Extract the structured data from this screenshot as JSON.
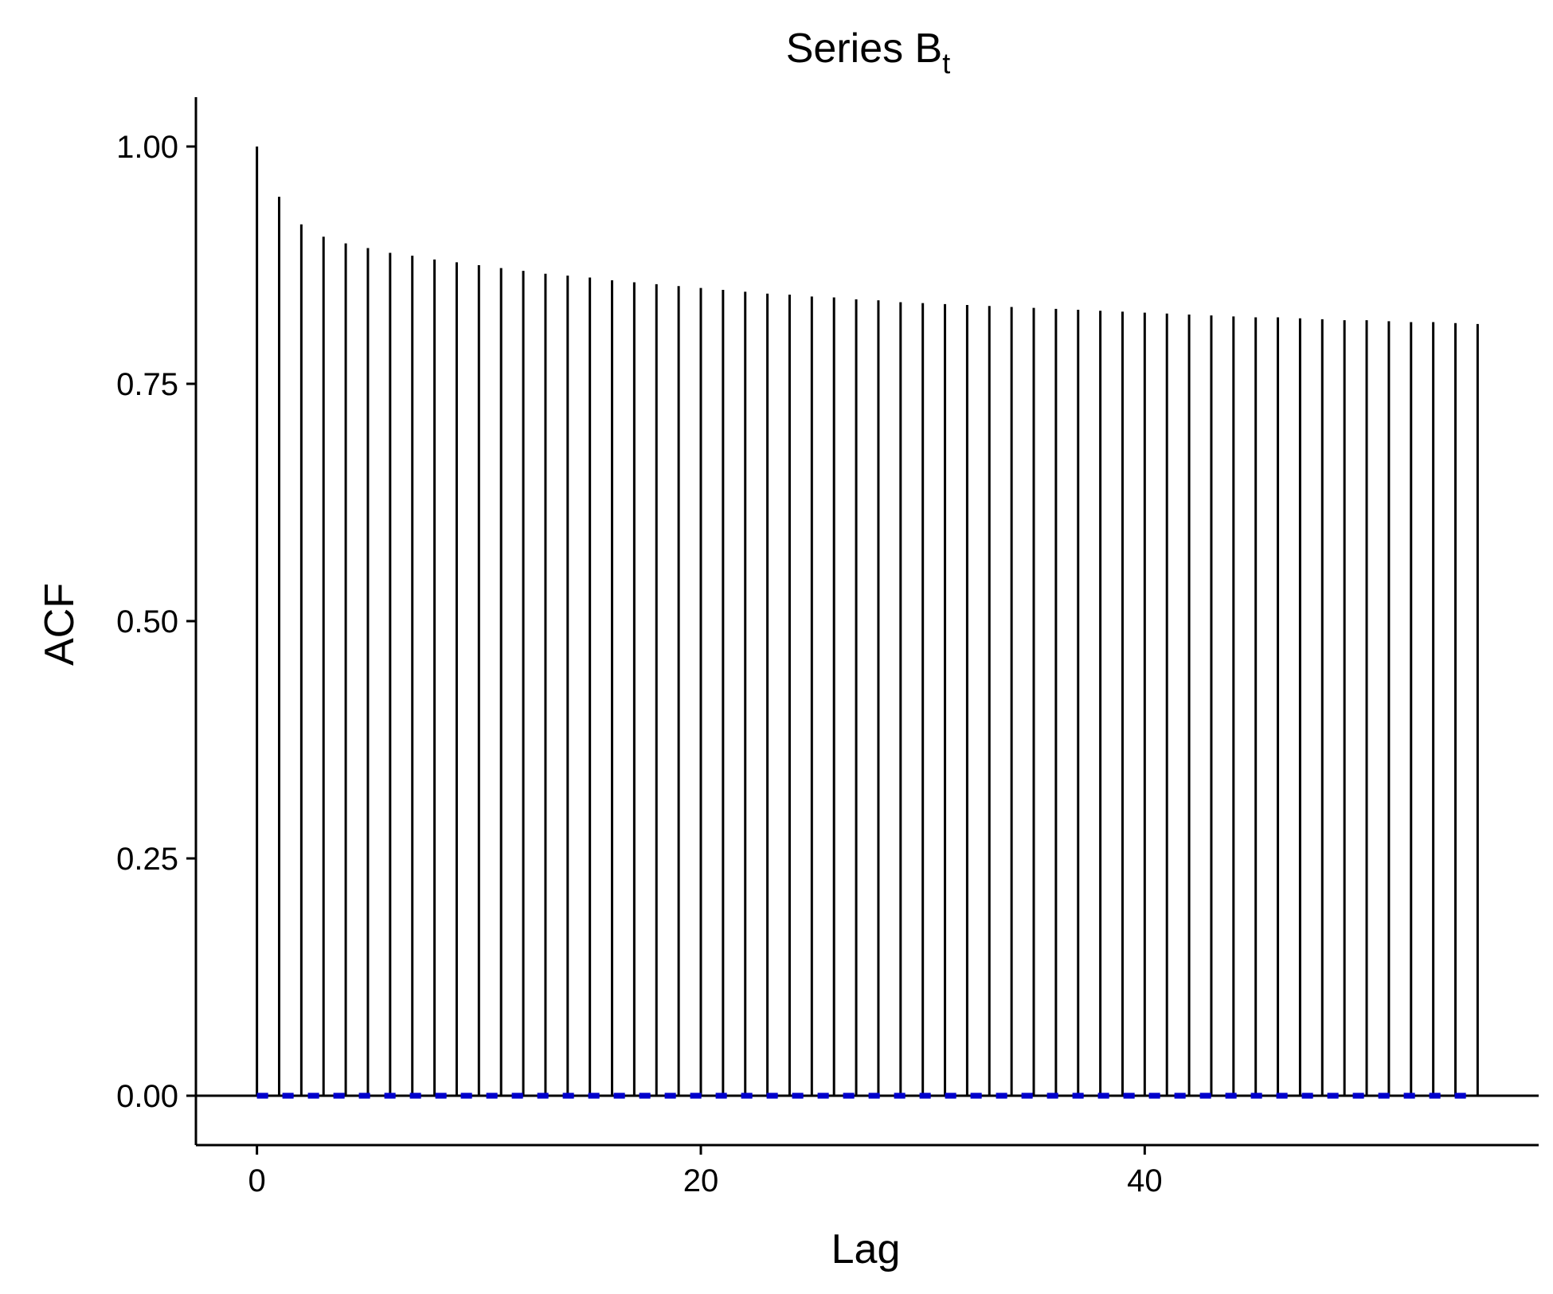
{
  "chart_data": {
    "type": "bar",
    "title": {
      "main": "Series B",
      "subscript": "t"
    },
    "xlabel": "Lag",
    "ylabel": "ACF",
    "xlim": [
      -2.75,
      57.75
    ],
    "ylim": [
      -0.052,
      1.052
    ],
    "x_ticks": [
      {
        "value": 0,
        "label": "0"
      },
      {
        "value": 20,
        "label": "20"
      },
      {
        "value": 40,
        "label": "40"
      }
    ],
    "y_ticks": [
      {
        "value": 0.0,
        "label": "0.00"
      },
      {
        "value": 0.25,
        "label": "0.25"
      },
      {
        "value": 0.5,
        "label": "0.50"
      },
      {
        "value": 0.75,
        "label": "0.75"
      },
      {
        "value": 1.0,
        "label": "1.00"
      }
    ],
    "lags": [
      0,
      1,
      2,
      3,
      4,
      5,
      6,
      7,
      8,
      9,
      10,
      11,
      12,
      13,
      14,
      15,
      16,
      17,
      18,
      19,
      20,
      21,
      22,
      23,
      24,
      25,
      26,
      27,
      28,
      29,
      30,
      31,
      32,
      33,
      34,
      35,
      36,
      37,
      38,
      39,
      40,
      41,
      42,
      43,
      44,
      45,
      46,
      47,
      48,
      49,
      50,
      51,
      52,
      53,
      54,
      55
    ],
    "acf": [
      1.0,
      0.947,
      0.918,
      0.905,
      0.898,
      0.893,
      0.888,
      0.885,
      0.881,
      0.878,
      0.875,
      0.872,
      0.869,
      0.866,
      0.864,
      0.862,
      0.859,
      0.857,
      0.855,
      0.853,
      0.851,
      0.849,
      0.847,
      0.845,
      0.844,
      0.842,
      0.841,
      0.839,
      0.838,
      0.836,
      0.835,
      0.834,
      0.833,
      0.832,
      0.831,
      0.83,
      0.829,
      0.828,
      0.827,
      0.826,
      0.825,
      0.824,
      0.823,
      0.822,
      0.821,
      0.82,
      0.82,
      0.819,
      0.818,
      0.817,
      0.817,
      0.816,
      0.815,
      0.815,
      0.814,
      0.813
    ],
    "confidence_band": [
      -0.0005,
      0.0005
    ],
    "confidence_band_color": "#0000cc",
    "stem_color": "#000000",
    "grid": false,
    "legend": "none"
  }
}
